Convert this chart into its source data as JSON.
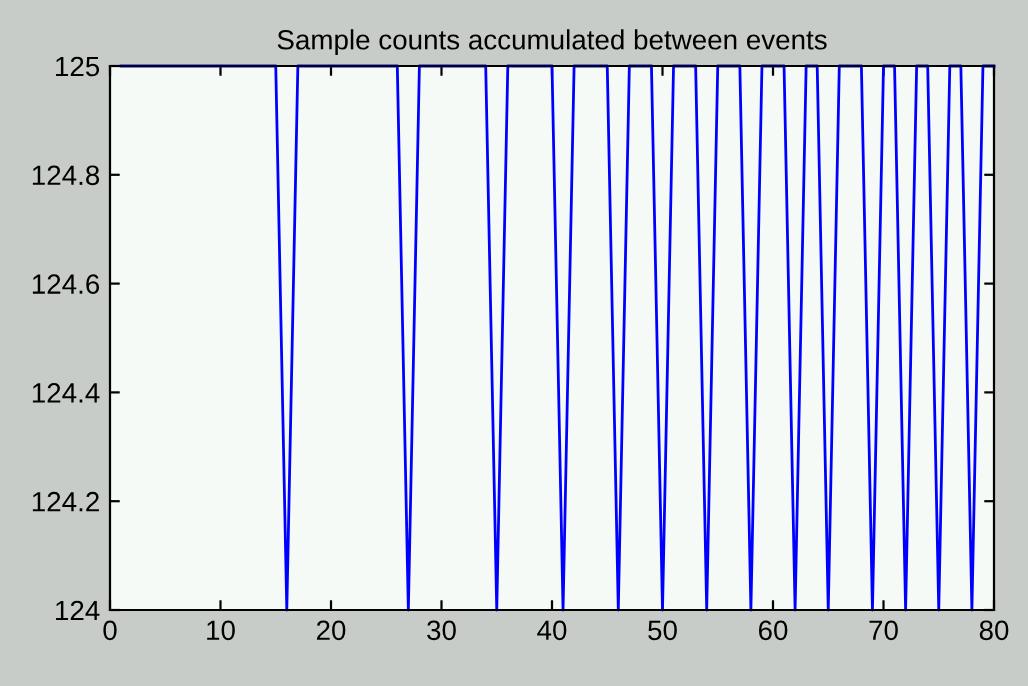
{
  "chart_data": {
    "type": "line",
    "title": "Sample counts accumulated between events",
    "x": [
      1,
      2,
      3,
      4,
      5,
      6,
      7,
      8,
      9,
      10,
      11,
      12,
      13,
      14,
      15,
      16,
      17,
      18,
      19,
      20,
      21,
      22,
      23,
      24,
      25,
      26,
      27,
      28,
      29,
      30,
      31,
      32,
      33,
      34,
      35,
      36,
      37,
      38,
      39,
      40,
      41,
      42,
      43,
      44,
      45,
      46,
      47,
      48,
      49,
      50,
      51,
      52,
      53,
      54,
      55,
      56,
      57,
      58,
      59,
      60,
      61,
      62,
      63,
      64,
      65,
      66,
      67,
      68,
      69,
      70,
      71,
      72,
      73,
      74,
      75,
      76,
      77,
      78,
      79,
      80
    ],
    "series": [
      {
        "color": "#0000ff",
        "values": [
          125,
          125,
          125,
          125,
          125,
          125,
          125,
          125,
          125,
          125,
          125,
          125,
          125,
          125,
          125,
          124,
          125,
          125,
          125,
          125,
          125,
          125,
          125,
          125,
          125,
          125,
          124,
          125,
          125,
          125,
          125,
          125,
          125,
          125,
          124,
          125,
          125,
          125,
          125,
          125,
          124,
          125,
          125,
          125,
          125,
          124,
          125,
          125,
          125,
          124,
          125,
          125,
          125,
          124,
          125,
          125,
          125,
          124,
          125,
          125,
          125,
          124,
          125,
          125,
          124,
          125,
          125,
          125,
          124,
          125,
          125,
          124,
          125,
          125,
          124,
          125,
          125,
          124,
          125,
          125
        ]
      }
    ],
    "xlim": [
      0,
      80
    ],
    "xticks": [
      0,
      10,
      20,
      30,
      40,
      50,
      60,
      70,
      80
    ],
    "ylim": [
      124,
      125
    ],
    "yticks": [
      124,
      124.2,
      124.4,
      124.6,
      124.8,
      125
    ],
    "grid": false,
    "legend": false,
    "marker": "none",
    "line_style": "solid"
  }
}
